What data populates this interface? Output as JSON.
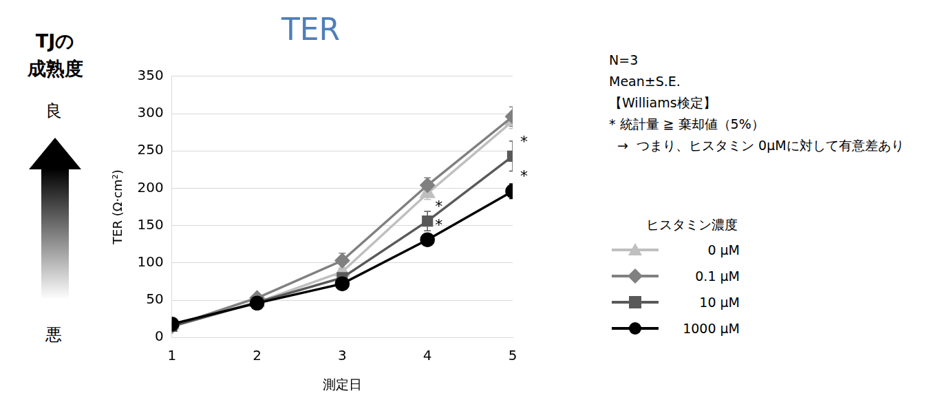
{
  "chart_data": {
    "type": "line",
    "title": "TER",
    "x_label": "測定日",
    "y_label": "TER (Ω·cm²)",
    "categories": [
      "1",
      "2",
      "3",
      "4",
      "5"
    ],
    "ylim": [
      0,
      350
    ],
    "yticks": [
      0,
      50,
      100,
      150,
      200,
      250,
      300,
      350
    ],
    "grid": true,
    "legend_title": "ヒスタミン濃度",
    "notes": [
      "N=3",
      "Mean±S.E.",
      "【Williams検定】",
      "* 統計量 ≧ 棄却値（5%）",
      "  →  つまり、ヒスタミン 0μMに対して有意差あり"
    ],
    "side_label": {
      "title": "TJの成熟度",
      "high": "良",
      "low": "悪"
    },
    "series": [
      {
        "name": "0 μM",
        "color": "#bfbfbf",
        "marker": "triangle",
        "values": [
          17,
          47,
          88,
          193,
          290
        ],
        "errors": [
          1,
          2,
          4,
          8,
          10
        ],
        "significance": [
          null,
          null,
          null,
          null,
          null
        ]
      },
      {
        "name": "0.1 μM",
        "color": "#808080",
        "marker": "diamond",
        "values": [
          15,
          53,
          103,
          204,
          296
        ],
        "errors": [
          1,
          2,
          10,
          10,
          13
        ],
        "significance": [
          null,
          null,
          null,
          null,
          null
        ]
      },
      {
        "name": "10 μM",
        "color": "#595959",
        "marker": "square",
        "values": [
          15,
          47,
          80,
          156,
          243
        ],
        "errors": [
          1,
          2,
          5,
          13,
          20
        ],
        "significance": [
          null,
          null,
          null,
          "*",
          "*"
        ]
      },
      {
        "name": "1000 μM",
        "color": "#000000",
        "marker": "circle",
        "values": [
          18,
          46,
          72,
          131,
          196
        ],
        "errors": [
          1,
          2,
          4,
          4,
          10
        ],
        "significance": [
          null,
          null,
          null,
          "*",
          "*"
        ]
      }
    ]
  }
}
